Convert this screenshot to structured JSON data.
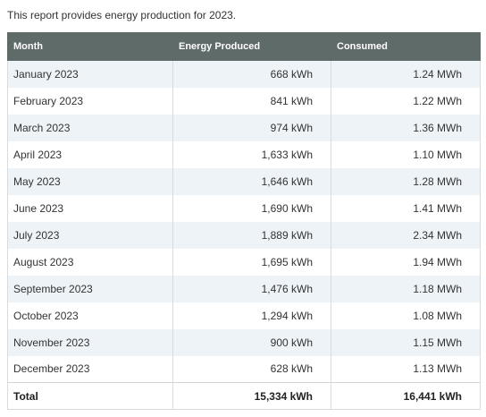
{
  "intro": "This report provides energy production for 2023.",
  "table": {
    "headers": [
      "Month",
      "Energy Produced",
      "Consumed"
    ],
    "rows": [
      [
        "January 2023",
        "668 kWh",
        "1.24 MWh"
      ],
      [
        "February 2023",
        "841 kWh",
        "1.22 MWh"
      ],
      [
        "March 2023",
        "974 kWh",
        "1.36 MWh"
      ],
      [
        "April 2023",
        "1,633 kWh",
        "1.10 MWh"
      ],
      [
        "May 2023",
        "1,646 kWh",
        "1.28 MWh"
      ],
      [
        "June 2023",
        "1,690 kWh",
        "1.41 MWh"
      ],
      [
        "July 2023",
        "1,889 kWh",
        "2.34 MWh"
      ],
      [
        "August 2023",
        "1,695 kWh",
        "1.94 MWh"
      ],
      [
        "September 2023",
        "1,476 kWh",
        "1.18 MWh"
      ],
      [
        "October 2023",
        "1,294 kWh",
        "1.08 MWh"
      ],
      [
        "November 2023",
        "900 kWh",
        "1.15 MWh"
      ],
      [
        "December 2023",
        "628 kWh",
        "1.13 MWh"
      ]
    ],
    "total": [
      "Total",
      "15,334 kWh",
      "16,441 kWh"
    ]
  }
}
